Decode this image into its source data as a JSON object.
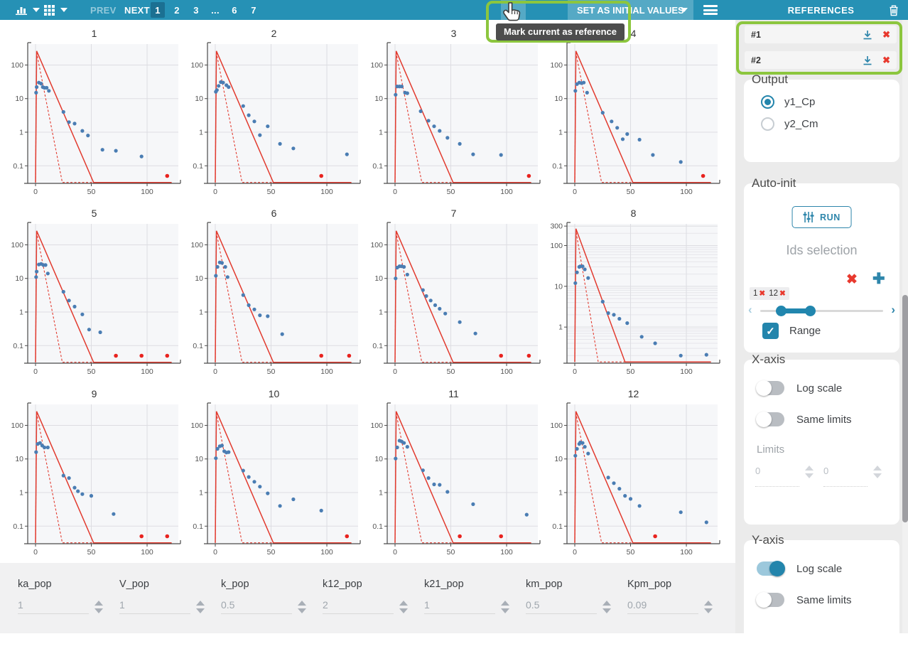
{
  "toolbar": {
    "prev_label": "PREV",
    "next_label": "NEXT",
    "pages": [
      "1",
      "2",
      "3",
      "...",
      "6",
      "7"
    ],
    "active_page": "1",
    "set_initial_label": "SET AS INITIAL VALUES",
    "tooltip": "Mark current as reference",
    "references_title": "REFERENCES"
  },
  "references": {
    "items": [
      {
        "label": "#1"
      },
      {
        "label": "#2"
      }
    ]
  },
  "sidebar": {
    "output": {
      "title": "Output",
      "options": [
        {
          "label": "y1_Cp",
          "selected": true
        },
        {
          "label": "y2_Cm",
          "selected": false
        }
      ]
    },
    "auto_init": {
      "title": "Auto-init",
      "run_label": "RUN",
      "ids_selection_label": "Ids selection",
      "tags": [
        {
          "label": "1"
        },
        {
          "label": "12"
        }
      ],
      "range_label": "Range",
      "range_checked": true
    },
    "x_axis": {
      "title": "X-axis",
      "log_scale": {
        "label": "Log scale",
        "on": false
      },
      "same_limits": {
        "label": "Same limits",
        "on": false
      },
      "limits_label": "Limits",
      "limit_values": [
        "0",
        "0"
      ]
    },
    "y_axis": {
      "title": "Y-axis",
      "log_scale": {
        "label": "Log scale",
        "on": true
      },
      "same_limits": {
        "label": "Same limits",
        "on": false
      }
    }
  },
  "parameters": [
    {
      "name": "ka_pop",
      "value": "1"
    },
    {
      "name": "V_pop",
      "value": "1"
    },
    {
      "name": "k_pop",
      "value": "0.5"
    },
    {
      "name": "k12_pop",
      "value": "2"
    },
    {
      "name": "k21_pop",
      "value": "1"
    },
    {
      "name": "km_pop",
      "value": "0.5"
    },
    {
      "name": "Kpm_pop",
      "value": "0.09"
    }
  ],
  "icons": {
    "bar-chart-icon": "bars-svg",
    "grid-icon": "grid-svg",
    "caret-down-icon": "▼",
    "hamburger-icon": "≡",
    "trash-icon": "trash-svg",
    "download-icon": "arrow-down-tray-svg",
    "remove-icon": "✖",
    "clear-icon": "✖",
    "plus-icon": "✚",
    "check-icon": "✓",
    "chevron-left-icon": "‹",
    "chevron-right-icon": "›",
    "run-sliders-icon": "sliders-svg",
    "cursor-icon": "hand-pointer-svg",
    "spinner-up-icon": "▲",
    "spinner-down-icon": "▼"
  },
  "colors": {
    "toolbar_blue": "#2691B5",
    "active_page_blue": "#1B7092",
    "accent_blue": "#2E86AB",
    "panel_gray": "#EBEBEB",
    "annotation_green": "#8CC63E",
    "tooltip_gray": "#4D4D4D",
    "line_red": "#E23A2E",
    "point_blue": "#4A7DB3",
    "point_red": "#E8231F"
  },
  "chart_data": {
    "type": "scatter",
    "layout": "4x3 small multiples, individual fits",
    "xlabel": "",
    "ylabel": "",
    "x_ticks": [
      0,
      50,
      100
    ],
    "xlim": [
      -7,
      128
    ],
    "y_ticks": [
      0.1,
      1,
      10,
      100
    ],
    "ylim": [
      0.03,
      420
    ],
    "y_log": true,
    "line_solid": [
      [
        0,
        0.032
      ],
      [
        1,
        260
      ],
      [
        52,
        0.032
      ],
      [
        122,
        0.032
      ]
    ],
    "line_dashed": [
      [
        0,
        0.032
      ],
      [
        1,
        230
      ],
      [
        24,
        0.032
      ],
      [
        122,
        0.032
      ]
    ],
    "plots": [
      {
        "title": "1",
        "scatter": [
          [
            0.5,
            15
          ],
          [
            1,
            22
          ],
          [
            3,
            30
          ],
          [
            5,
            28
          ],
          [
            6.5,
            22
          ],
          [
            8,
            21
          ],
          [
            10,
            21
          ],
          [
            12,
            17
          ],
          [
            25,
            4
          ],
          [
            30,
            2
          ],
          [
            35,
            1.8
          ],
          [
            42,
            1.1
          ],
          [
            47,
            0.8
          ],
          [
            60,
            0.3
          ],
          [
            72,
            0.28
          ],
          [
            95,
            0.19
          ]
        ],
        "red_points": [
          [
            118,
            0.05
          ]
        ]
      },
      {
        "title": "2",
        "scatter": [
          [
            0.5,
            16
          ],
          [
            1.5,
            18
          ],
          [
            3,
            24
          ],
          [
            5,
            31
          ],
          [
            7,
            30
          ],
          [
            10,
            25
          ],
          [
            12,
            22
          ],
          [
            25,
            6
          ],
          [
            30,
            3.2
          ],
          [
            35,
            2.1
          ],
          [
            40,
            0.82
          ],
          [
            47,
            1.5
          ],
          [
            58,
            0.45
          ],
          [
            70,
            0.33
          ],
          [
            118,
            0.22
          ]
        ],
        "red_points": [
          [
            95,
            0.05
          ]
        ]
      },
      {
        "title": "3",
        "scatter": [
          [
            0.5,
            13
          ],
          [
            2,
            23
          ],
          [
            4,
            23
          ],
          [
            6,
            23
          ],
          [
            9,
            15
          ],
          [
            11,
            14.5
          ],
          [
            23,
            4.2
          ],
          [
            30,
            2.2
          ],
          [
            35,
            1.5
          ],
          [
            40,
            1.1
          ],
          [
            47,
            0.68
          ],
          [
            58,
            0.45
          ],
          [
            70,
            0.22
          ],
          [
            95,
            0.21
          ]
        ],
        "red_points": [
          [
            120,
            0.05
          ]
        ]
      },
      {
        "title": "4",
        "scatter": [
          [
            0.5,
            17
          ],
          [
            2,
            27
          ],
          [
            4,
            30
          ],
          [
            6,
            29
          ],
          [
            8,
            30
          ],
          [
            11,
            15
          ],
          [
            25,
            3.8
          ],
          [
            33,
            2.1
          ],
          [
            38,
            1.35
          ],
          [
            43,
            0.62
          ],
          [
            47,
            0.88
          ],
          [
            58,
            0.6
          ],
          [
            70,
            0.21
          ],
          [
            95,
            0.13
          ]
        ],
        "red_points": [
          [
            115,
            0.05
          ]
        ]
      },
      {
        "title": "5",
        "scatter": [
          [
            0.5,
            11
          ],
          [
            1,
            16
          ],
          [
            3,
            26
          ],
          [
            5,
            27
          ],
          [
            7,
            25
          ],
          [
            9,
            25
          ],
          [
            11,
            14
          ],
          [
            25,
            4
          ],
          [
            30,
            2.2
          ],
          [
            35,
            1.45
          ],
          [
            42,
            0.85
          ],
          [
            48,
            0.3
          ],
          [
            58,
            0.25
          ]
        ],
        "red_points": [
          [
            72,
            0.05
          ],
          [
            95,
            0.05
          ],
          [
            118,
            0.05
          ]
        ]
      },
      {
        "title": "6",
        "scatter": [
          [
            0.5,
            12
          ],
          [
            2,
            22
          ],
          [
            4,
            30
          ],
          [
            6,
            29
          ],
          [
            9,
            22
          ],
          [
            11,
            11
          ],
          [
            25,
            3.2
          ],
          [
            30,
            1.6
          ],
          [
            35,
            1.2
          ],
          [
            40,
            0.8
          ],
          [
            47,
            0.75
          ],
          [
            60,
            0.22
          ]
        ],
        "red_points": [
          [
            95,
            0.05
          ],
          [
            120,
            0.05
          ]
        ]
      },
      {
        "title": "7",
        "scatter": [
          [
            0.5,
            10
          ],
          [
            2,
            21
          ],
          [
            4,
            23
          ],
          [
            6,
            23
          ],
          [
            8,
            22
          ],
          [
            11,
            13
          ],
          [
            25,
            4.5
          ],
          [
            28,
            3
          ],
          [
            32,
            2.2
          ],
          [
            36,
            1.6
          ],
          [
            40,
            1.25
          ],
          [
            45,
            0.9
          ],
          [
            58,
            0.5
          ],
          [
            72,
            0.23
          ]
        ],
        "red_points": [
          [
            95,
            0.05
          ],
          [
            120,
            0.05
          ]
        ]
      },
      {
        "title": "8",
        "scatter": [
          [
            0.5,
            12
          ],
          [
            2,
            22
          ],
          [
            4,
            30
          ],
          [
            5,
            31
          ],
          [
            7,
            31
          ],
          [
            9,
            26
          ],
          [
            12,
            16
          ],
          [
            25,
            4.2
          ],
          [
            30,
            2.2
          ],
          [
            35,
            2
          ],
          [
            40,
            1.6
          ],
          [
            47,
            1.25
          ],
          [
            60,
            0.58
          ],
          [
            72,
            0.4
          ],
          [
            95,
            0.2
          ],
          [
            118,
            0.21
          ]
        ],
        "red_points": [],
        "y_ticks": [
          1,
          10,
          100,
          300
        ],
        "ylim": [
          0.13,
          340
        ],
        "minor_grid": true,
        "line_solid": [
          [
            0,
            0.14
          ],
          [
            1,
            260
          ],
          [
            45,
            0.14
          ],
          [
            122,
            0.14
          ]
        ],
        "line_dashed": [
          [
            0,
            0.14
          ],
          [
            1,
            230
          ],
          [
            21,
            0.14
          ],
          [
            122,
            0.14
          ]
        ]
      },
      {
        "title": "9",
        "scatter": [
          [
            0.5,
            16
          ],
          [
            2,
            28
          ],
          [
            4,
            30
          ],
          [
            6,
            25
          ],
          [
            8,
            22
          ],
          [
            11,
            22
          ],
          [
            25,
            3.2
          ],
          [
            30,
            2.7
          ],
          [
            35,
            1.4
          ],
          [
            38,
            1.1
          ],
          [
            42,
            0.9
          ],
          [
            50,
            0.8
          ],
          [
            70,
            0.23
          ]
        ],
        "red_points": [
          [
            95,
            0.05
          ],
          [
            118,
            0.05
          ]
        ]
      },
      {
        "title": "10",
        "scatter": [
          [
            0.5,
            10.5
          ],
          [
            2,
            20
          ],
          [
            4,
            24
          ],
          [
            6,
            25
          ],
          [
            8,
            17
          ],
          [
            10,
            15.5
          ],
          [
            12,
            16
          ],
          [
            25,
            4.5
          ],
          [
            30,
            2.9
          ],
          [
            35,
            2.1
          ],
          [
            40,
            1.5
          ],
          [
            47,
            0.95
          ],
          [
            58,
            0.4
          ],
          [
            70,
            0.63
          ],
          [
            95,
            0.29
          ]
        ],
        "red_points": [
          [
            118,
            0.05
          ]
        ]
      },
      {
        "title": "11",
        "scatter": [
          [
            0.5,
            10.3
          ],
          [
            2,
            22
          ],
          [
            4,
            35
          ],
          [
            6,
            33
          ],
          [
            8,
            30
          ],
          [
            11,
            23
          ],
          [
            25,
            4.6
          ],
          [
            30,
            2.7
          ],
          [
            35,
            1.75
          ],
          [
            40,
            1.7
          ],
          [
            47,
            1.05
          ],
          [
            70,
            0.45
          ],
          [
            118,
            0.22
          ]
        ],
        "red_points": [
          [
            58,
            0.05
          ],
          [
            95,
            0.05
          ]
        ]
      },
      {
        "title": "12",
        "scatter": [
          [
            0.5,
            12.5
          ],
          [
            2,
            20
          ],
          [
            4,
            28
          ],
          [
            5,
            31
          ],
          [
            7,
            30
          ],
          [
            9,
            23
          ],
          [
            12,
            14.5
          ],
          [
            30,
            2.8
          ],
          [
            35,
            1.9
          ],
          [
            40,
            1.3
          ],
          [
            45,
            0.8
          ],
          [
            50,
            0.65
          ],
          [
            58,
            0.4
          ],
          [
            95,
            0.26
          ],
          [
            118,
            0.13
          ]
        ],
        "red_points": [
          [
            72,
            0.05
          ]
        ]
      }
    ]
  }
}
